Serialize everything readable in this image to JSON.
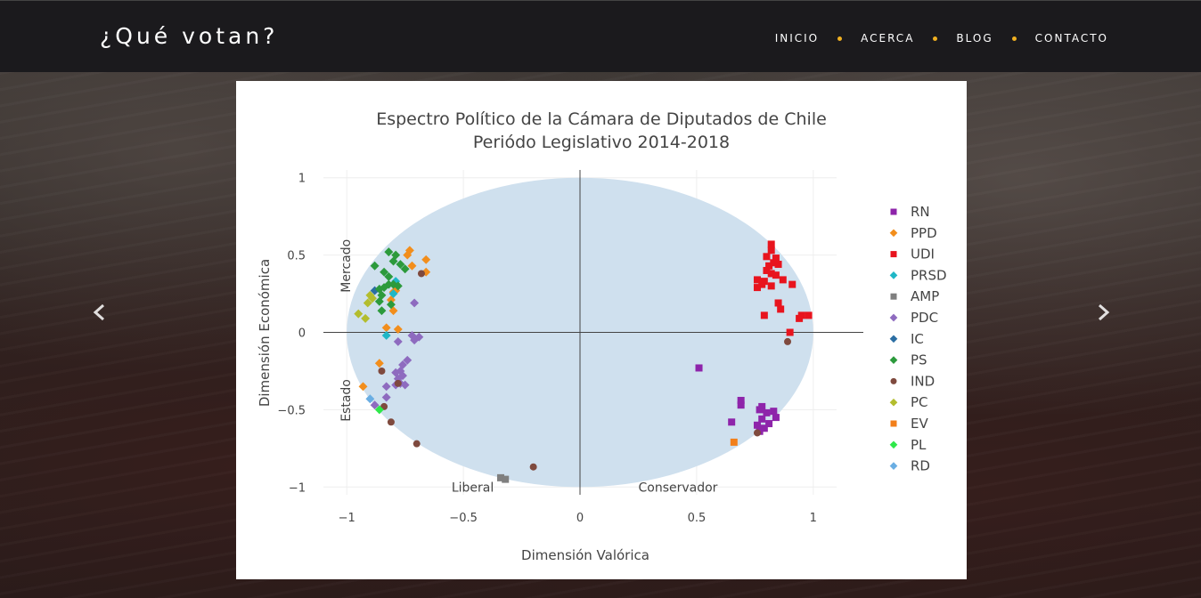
{
  "site": {
    "brand": "¿Qué votan?",
    "nav": [
      {
        "label": "INICIO"
      },
      {
        "label": "ACERCA"
      },
      {
        "label": "BLOG"
      },
      {
        "label": "CONTACTO"
      }
    ],
    "colors": {
      "navbar": "#1b1a1d",
      "nav_dot": "#f0b021"
    },
    "icons": {
      "prev": "chevron-left-icon",
      "next": "chevron-right-icon"
    }
  },
  "chart_data": {
    "type": "scatter",
    "title": "Espectro Político de la Cámara de Diputados de Chile",
    "subtitle": "Periódo Legislativo 2014-2018",
    "xlabel": "Dimensión Valórica",
    "ylabel": "Dimensión Económica",
    "xlim": [
      -1.1,
      1.1
    ],
    "ylim": [
      -1.05,
      1.05
    ],
    "xticks": [
      {
        "v": -1,
        "label": "−1"
      },
      {
        "v": -0.5,
        "label": "−0.5"
      },
      {
        "v": 0,
        "label": "0"
      },
      {
        "v": 0.5,
        "label": "0.5"
      },
      {
        "v": 1,
        "label": "1"
      }
    ],
    "yticks": [
      {
        "v": -1,
        "label": "−1"
      },
      {
        "v": -0.5,
        "label": "−0.5"
      },
      {
        "v": 0,
        "label": "0"
      },
      {
        "v": 0.5,
        "label": "0.5"
      },
      {
        "v": 1,
        "label": "1"
      }
    ],
    "grid": true,
    "legend_position": "right",
    "background_shape": {
      "type": "ellipse",
      "center": [
        0,
        0
      ],
      "radius_x": 1,
      "radius_y": 1,
      "color": "#cfe0ee"
    },
    "annotations": [
      {
        "text": "Liberal",
        "x": -0.46,
        "y": -1
      },
      {
        "text": "Conservador",
        "x": 0.42,
        "y": -1
      },
      {
        "text": "Mercado",
        "x": -1.0,
        "y": 0.43,
        "rotate": true
      },
      {
        "text": "Estado",
        "x": -1.0,
        "y": -0.44,
        "rotate": true
      }
    ],
    "series": [
      {
        "name": "RN",
        "color": "#8e24aa",
        "symbol": "square",
        "points": [
          [
            0.51,
            -0.23
          ],
          [
            0.69,
            -0.44
          ],
          [
            0.69,
            -0.47
          ],
          [
            0.65,
            -0.58
          ],
          [
            0.78,
            -0.48
          ],
          [
            0.77,
            -0.5
          ],
          [
            0.8,
            -0.52
          ],
          [
            0.83,
            -0.51
          ],
          [
            0.84,
            -0.55
          ],
          [
            0.78,
            -0.56
          ],
          [
            0.76,
            -0.6
          ],
          [
            0.81,
            -0.59
          ],
          [
            0.79,
            -0.62
          ],
          [
            0.77,
            -0.64
          ]
        ]
      },
      {
        "name": "PPD",
        "color": "#f28e1c",
        "symbol": "diamond",
        "points": [
          [
            -0.73,
            0.53
          ],
          [
            -0.74,
            0.5
          ],
          [
            -0.72,
            0.43
          ],
          [
            -0.66,
            0.47
          ],
          [
            -0.66,
            0.39
          ],
          [
            -0.8,
            0.26
          ],
          [
            -0.79,
            0.27
          ],
          [
            -0.81,
            0.21
          ],
          [
            -0.8,
            0.14
          ],
          [
            -0.83,
            0.03
          ],
          [
            -0.78,
            0.02
          ],
          [
            -0.86,
            -0.2
          ],
          [
            -0.93,
            -0.35
          ]
        ]
      },
      {
        "name": "UDI",
        "color": "#e8141e",
        "symbol": "square",
        "points": [
          [
            0.82,
            0.57
          ],
          [
            0.82,
            0.53
          ],
          [
            0.8,
            0.49
          ],
          [
            0.84,
            0.48
          ],
          [
            0.83,
            0.45
          ],
          [
            0.85,
            0.44
          ],
          [
            0.81,
            0.43
          ],
          [
            0.8,
            0.4
          ],
          [
            0.82,
            0.38
          ],
          [
            0.84,
            0.37
          ],
          [
            0.76,
            0.34
          ],
          [
            0.79,
            0.33
          ],
          [
            0.78,
            0.31
          ],
          [
            0.76,
            0.29
          ],
          [
            0.82,
            0.3
          ],
          [
            0.87,
            0.34
          ],
          [
            0.91,
            0.31
          ],
          [
            0.85,
            0.19
          ],
          [
            0.86,
            0.15
          ],
          [
            0.79,
            0.11
          ],
          [
            0.94,
            0.09
          ],
          [
            0.95,
            0.11
          ],
          [
            0.98,
            0.11
          ],
          [
            0.9,
            0.0
          ]
        ]
      },
      {
        "name": "PRSD",
        "color": "#1fb7c6",
        "symbol": "diamond",
        "points": [
          [
            -0.79,
            0.33
          ],
          [
            -0.8,
            0.25
          ],
          [
            -0.83,
            -0.02
          ]
        ]
      },
      {
        "name": "AMP",
        "color": "#7f7f7f",
        "symbol": "square",
        "points": [
          [
            -0.34,
            -0.94
          ],
          [
            -0.32,
            -0.95
          ]
        ]
      },
      {
        "name": "PDC",
        "color": "#8e6bbf",
        "symbol": "diamond",
        "points": [
          [
            -0.71,
            0.19
          ],
          [
            -0.72,
            -0.02
          ],
          [
            -0.69,
            -0.03
          ],
          [
            -0.71,
            -0.05
          ],
          [
            -0.78,
            -0.06
          ],
          [
            -0.74,
            -0.18
          ],
          [
            -0.76,
            -0.21
          ],
          [
            -0.77,
            -0.25
          ],
          [
            -0.79,
            -0.26
          ],
          [
            -0.76,
            -0.28
          ],
          [
            -0.78,
            -0.3
          ],
          [
            -0.77,
            -0.33
          ],
          [
            -0.75,
            -0.34
          ],
          [
            -0.83,
            -0.35
          ],
          [
            -0.79,
            -0.34
          ],
          [
            -0.83,
            -0.42
          ],
          [
            -0.88,
            -0.47
          ]
        ]
      },
      {
        "name": "IC",
        "color": "#2b6ea3",
        "symbol": "diamond",
        "points": [
          [
            -0.88,
            0.27
          ]
        ]
      },
      {
        "name": "PS",
        "color": "#2c9a3c",
        "symbol": "diamond",
        "points": [
          [
            -0.82,
            0.52
          ],
          [
            -0.79,
            0.5
          ],
          [
            -0.8,
            0.46
          ],
          [
            -0.77,
            0.44
          ],
          [
            -0.75,
            0.41
          ],
          [
            -0.88,
            0.43
          ],
          [
            -0.84,
            0.39
          ],
          [
            -0.82,
            0.36
          ],
          [
            -0.82,
            0.31
          ],
          [
            -0.84,
            0.29
          ],
          [
            -0.86,
            0.28
          ],
          [
            -0.85,
            0.24
          ],
          [
            -0.86,
            0.2
          ],
          [
            -0.81,
            0.18
          ],
          [
            -0.85,
            0.14
          ],
          [
            -0.8,
            0.31
          ],
          [
            -0.78,
            0.3
          ]
        ]
      },
      {
        "name": "IND",
        "color": "#7f4a3e",
        "symbol": "circle",
        "points": [
          [
            -0.68,
            0.38
          ],
          [
            0.89,
            -0.06
          ],
          [
            -0.78,
            -0.33
          ],
          [
            -0.84,
            -0.48
          ],
          [
            -0.81,
            -0.58
          ],
          [
            -0.7,
            -0.72
          ],
          [
            -0.2,
            -0.87
          ],
          [
            0.76,
            -0.65
          ],
          [
            -0.85,
            -0.25
          ]
        ]
      },
      {
        "name": "PC",
        "color": "#b3bd2e",
        "symbol": "diamond",
        "points": [
          [
            -0.9,
            0.24
          ],
          [
            -0.89,
            0.22
          ],
          [
            -0.91,
            0.19
          ],
          [
            -0.95,
            0.12
          ],
          [
            -0.92,
            0.09
          ]
        ]
      },
      {
        "name": "EV",
        "color": "#f27f1a",
        "symbol": "square",
        "points": [
          [
            0.66,
            -0.71
          ]
        ]
      },
      {
        "name": "PL",
        "color": "#2ee84a",
        "symbol": "diamond",
        "points": [
          [
            -0.86,
            -0.5
          ]
        ]
      },
      {
        "name": "RD",
        "color": "#6aaee3",
        "symbol": "diamond",
        "points": [
          [
            -0.9,
            -0.43
          ]
        ]
      }
    ]
  }
}
